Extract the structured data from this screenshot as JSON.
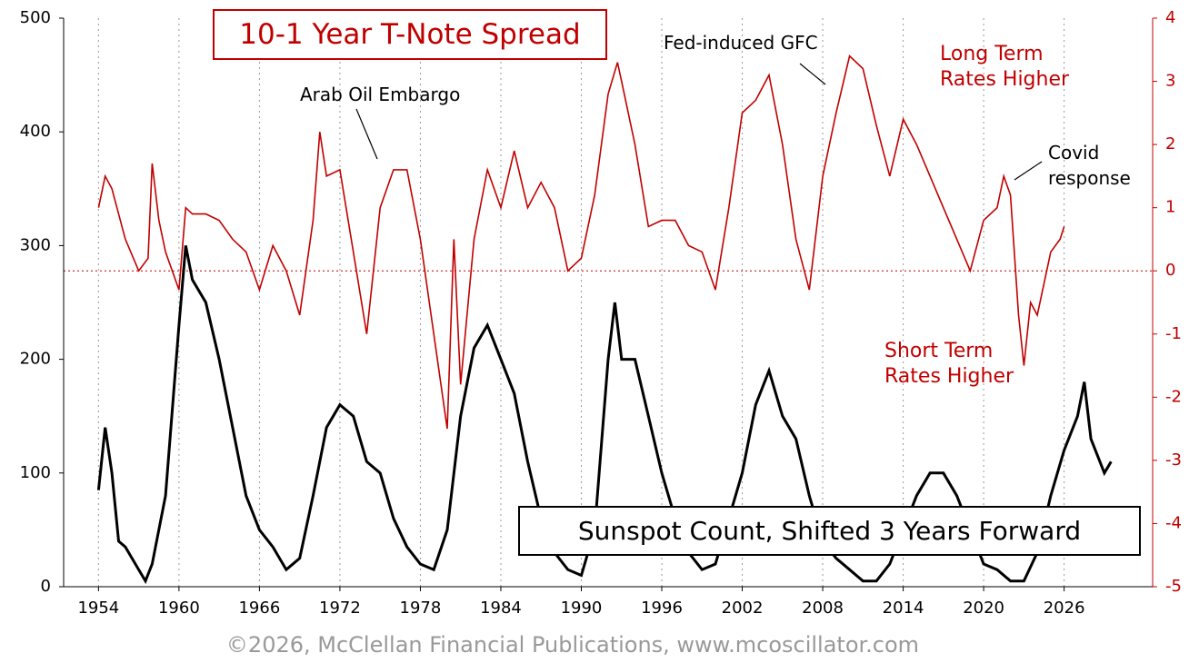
{
  "chart_data": {
    "type": "line",
    "footer": "©2026, McClellan Financial Publications, www.mcoscillator.com",
    "annotations": [
      "Arab Oil Embargo",
      "Fed-induced GFC",
      "Long Term Rates Higher",
      "Covid response",
      "Short Term Rates Higher"
    ],
    "xlim": [
      1951.4,
      2032.6
    ],
    "xticks": [
      1954,
      1960,
      1966,
      1972,
      1978,
      1984,
      1990,
      1996,
      2002,
      2008,
      2014,
      2020,
      2026
    ],
    "ylim": [
      0,
      500
    ],
    "yticks": [
      0,
      100,
      200,
      300,
      400,
      500
    ],
    "y2lim": [
      -5,
      4
    ],
    "y2ticks": [
      -5,
      -4,
      -3,
      -2,
      -1,
      0,
      1,
      2,
      3,
      4
    ],
    "grid": true,
    "series": [
      {
        "name": "Sunspot Count, Shifted 3 Years Forward",
        "color": "#000000",
        "axis": "y",
        "x": [
          1954,
          1954.5,
          1955,
          1955.5,
          1956,
          1957,
          1957.5,
          1958,
          1959,
          1960,
          1960.5,
          1961,
          1962,
          1963,
          1964,
          1965,
          1966,
          1967,
          1968,
          1969,
          1970,
          1971,
          1972,
          1973,
          1974,
          1975,
          1976,
          1977,
          1978,
          1979,
          1980,
          1981,
          1982,
          1983,
          1984,
          1985,
          1986,
          1987,
          1988,
          1989,
          1990,
          1991,
          1992,
          1992.5,
          1993,
          1994,
          1995,
          1996,
          1997,
          1998,
          1999,
          2000,
          2001,
          2002,
          2003,
          2004,
          2005,
          2006,
          2007,
          2008,
          2009,
          2010,
          2011,
          2012,
          2013,
          2014,
          2015,
          2016,
          2017,
          2018,
          2019,
          2020,
          2021,
          2022,
          2023,
          2024,
          2025,
          2026,
          2027,
          2027.5,
          2028,
          2029,
          2029.5
        ],
        "values": [
          85,
          140,
          100,
          40,
          35,
          15,
          5,
          20,
          80,
          230,
          300,
          270,
          250,
          200,
          140,
          80,
          50,
          35,
          15,
          25,
          80,
          140,
          160,
          150,
          110,
          100,
          60,
          35,
          20,
          15,
          50,
          150,
          210,
          230,
          200,
          170,
          110,
          60,
          30,
          15,
          10,
          50,
          200,
          250,
          200,
          200,
          150,
          100,
          60,
          30,
          15,
          20,
          60,
          100,
          160,
          190,
          150,
          130,
          80,
          40,
          25,
          15,
          5,
          5,
          20,
          50,
          80,
          100,
          100,
          80,
          50,
          20,
          15,
          5,
          5,
          30,
          80,
          120,
          150,
          180,
          130,
          100,
          110
        ]
      },
      {
        "name": "10-1 Year T-Note Spread",
        "color": "#c00000",
        "axis": "y2",
        "x": [
          1954,
          1954.5,
          1955,
          1956,
          1957,
          1957.7,
          1958,
          1958.5,
          1959,
          1960,
          1960.5,
          1961,
          1962,
          1963,
          1964,
          1965,
          1966,
          1967,
          1968,
          1969,
          1970,
          1970.5,
          1971,
          1972,
          1973,
          1974,
          1975,
          1976,
          1977,
          1978,
          1979,
          1980,
          1980.5,
          1981,
          1982,
          1983,
          1984,
          1985,
          1986,
          1987,
          1988,
          1989,
          1990,
          1991,
          1992,
          1992.7,
          1993,
          1994,
          1995,
          1996,
          1997,
          1998,
          1999,
          2000,
          2001,
          2002,
          2003,
          2004,
          2005,
          2006,
          2007,
          2008,
          2009,
          2010,
          2011,
          2012,
          2013,
          2014,
          2015,
          2016,
          2017,
          2018,
          2019,
          2020,
          2021,
          2021.5,
          2022,
          2022.6,
          2023,
          2023.5,
          2024,
          2025,
          2025.7,
          2026
        ],
        "values": [
          1.0,
          1.5,
          1.3,
          0.5,
          0.0,
          0.2,
          1.7,
          0.8,
          0.3,
          -0.3,
          1.0,
          0.9,
          0.9,
          0.8,
          0.5,
          0.3,
          -0.3,
          0.4,
          0.0,
          -0.7,
          0.8,
          2.2,
          1.5,
          1.6,
          0.3,
          -1.0,
          1.0,
          1.6,
          1.6,
          0.5,
          -1.0,
          -2.5,
          0.5,
          -1.8,
          0.5,
          1.6,
          1.0,
          1.9,
          1.0,
          1.4,
          1.0,
          0.0,
          0.2,
          1.2,
          2.8,
          3.3,
          3.0,
          2.0,
          0.7,
          0.8,
          0.8,
          0.4,
          0.3,
          -0.3,
          1.0,
          2.5,
          2.7,
          3.1,
          2.0,
          0.5,
          -0.3,
          1.5,
          2.5,
          3.4,
          3.2,
          2.3,
          1.5,
          2.4,
          2.0,
          1.5,
          1.0,
          0.5,
          0.0,
          0.8,
          1.0,
          1.5,
          1.2,
          -0.7,
          -1.5,
          -0.5,
          -0.7,
          0.3,
          0.5,
          0.7
        ]
      }
    ]
  }
}
